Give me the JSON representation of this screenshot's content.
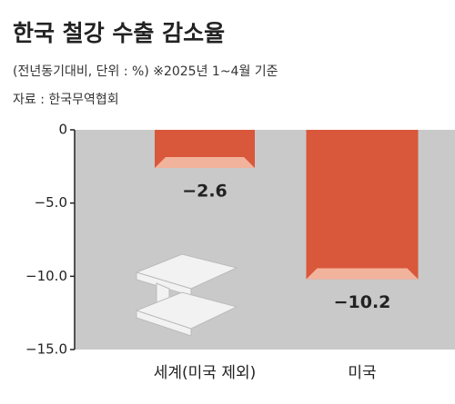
{
  "chart_data": {
    "type": "bar",
    "title": "한국 철강 수출 감소율",
    "subtitle": "(전년동기대비, 단위 : %)  ※2025년 1~4월 기준",
    "source": "자료 : 한국무역협회",
    "categories": [
      "세계(미국 제외)",
      "미국"
    ],
    "values": [
      -2.6,
      -10.2
    ],
    "value_labels": [
      "−2.6",
      "−10.2"
    ],
    "color": "#d9573b",
    "ylim": [
      -15,
      0
    ],
    "yticks": [
      {
        "value": 0,
        "label": "0"
      },
      {
        "value": -5,
        "label": "−5.0"
      },
      {
        "value": -10,
        "label": "−10.0"
      },
      {
        "value": -15,
        "label": "−15.0"
      }
    ]
  }
}
